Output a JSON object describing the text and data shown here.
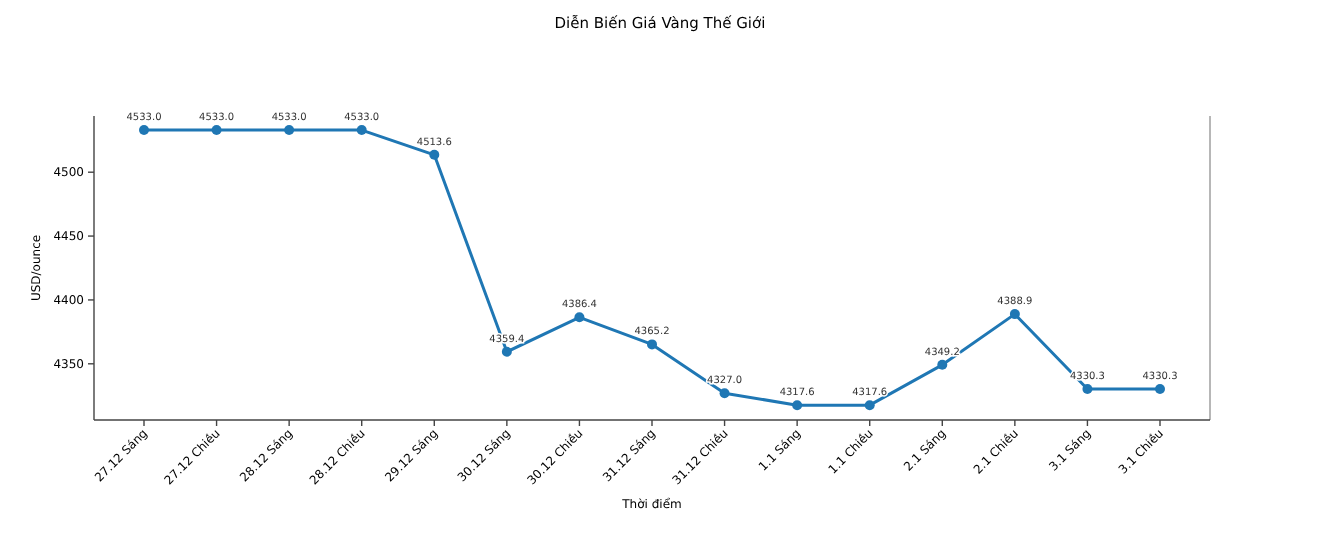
{
  "chart_data": {
    "type": "line",
    "title": "Diễn Biến Giá Vàng Thế Giới",
    "xlabel": "Thời điểm",
    "ylabel": "USD/ounce",
    "categories": [
      "27.12 Sáng",
      "27.12 Chiều",
      "28.12 Sáng",
      "28.12 Chiều",
      "29.12 Sáng",
      "30.12 Sáng",
      "30.12 Chiều",
      "31.12 Sáng",
      "31.12 Chiều",
      "1.1 Sáng",
      "1.1 Chiều",
      "2.1 Sáng",
      "2.1 Chiều",
      "3.1 Sáng",
      "3.1 Chiều"
    ],
    "series": [
      {
        "color": "#1f77b4",
        "values": [
          4533.0,
          4533.0,
          4533.0,
          4533.0,
          4513.6,
          4359.4,
          4386.4,
          4365.2,
          4327.0,
          4317.6,
          4317.6,
          4349.2,
          4388.9,
          4330.3,
          4330.3
        ],
        "value_labels": [
          "4533.0",
          "4533.0",
          "4533.0",
          "4533.0",
          "4513.6",
          "4359.4",
          "4386.4",
          "4365.2",
          "4327.0",
          "4317.6",
          "4317.6",
          "4349.2",
          "4388.9",
          "4330.3",
          "4330.3"
        ]
      }
    ],
    "ylim": [
      4306,
      4544
    ],
    "yticks": [
      4350,
      4400,
      4450,
      4500
    ],
    "marker": "circle",
    "grid": false
  }
}
